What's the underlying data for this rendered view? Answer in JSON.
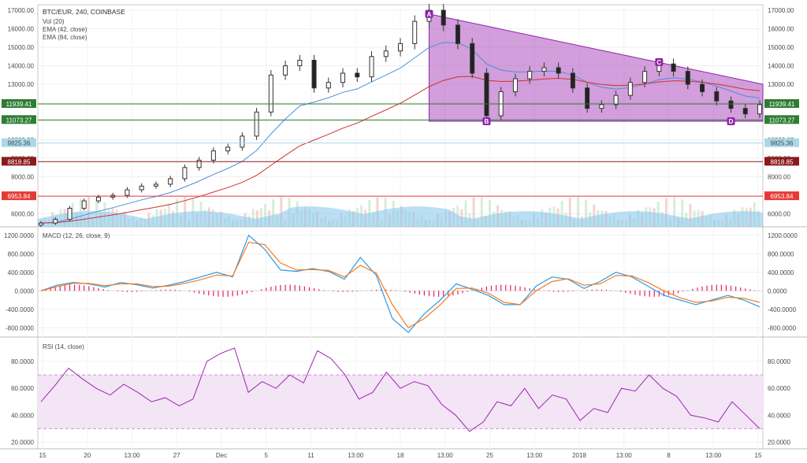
{
  "chart_data": [
    {
      "type": "candlestick",
      "title": "BTC/EUR, 240, COINBASE",
      "indicators_legend": [
        "Vol (20)",
        "EMA (42, close)",
        "EMA (84, close)"
      ],
      "ylim": [
        5300,
        17300
      ],
      "y_ticks": [
        "6000.00",
        "8000.00",
        "9000.00",
        "10000.00",
        "11000.00",
        "12000.00",
        "13000.00",
        "14000.00",
        "15000.00",
        "16000.00",
        "17000.00"
      ],
      "price_labels": [
        {
          "value": 11939.41,
          "text": "11939.41",
          "color": "#2e7d32"
        },
        {
          "value": 11073.27,
          "text": "11073.27",
          "color": "#2e7d32"
        },
        {
          "value": 9825.36,
          "text": "9825.36",
          "color": "#a9d8e8"
        },
        {
          "value": 8818.85,
          "text": "8818.85",
          "color": "#8b1a1a"
        },
        {
          "value": 6953.84,
          "text": "6953.84",
          "color": "#e53935"
        }
      ],
      "pattern_points": [
        {
          "label": "A",
          "value": 16800
        },
        {
          "label": "B",
          "value": 11000
        },
        {
          "label": "C",
          "value": 14200
        },
        {
          "label": "D",
          "value": 11000
        }
      ],
      "close_series": [
        5500,
        5700,
        6300,
        6700,
        6900,
        7000,
        7300,
        7500,
        7600,
        7900,
        8500,
        8900,
        9400,
        9600,
        10200,
        11500,
        13500,
        14000,
        14300,
        12800,
        13100,
        13600,
        13400,
        14500,
        14800,
        15200,
        16400,
        17000,
        16200,
        15200,
        13600,
        11300,
        12600,
        13300,
        13700,
        13900,
        13600,
        12800,
        11700,
        11900,
        12400,
        13100,
        13700,
        14100,
        13700,
        13000,
        12600,
        12100,
        11700,
        11400,
        11900
      ]
    },
    {
      "type": "line",
      "title": "MACD (12, 26, close, 9)",
      "ylim": [
        -1000,
        1350
      ],
      "y_ticks": [
        "-800.0000",
        "-400.0000",
        "0.0000",
        "400.0000",
        "800.0000",
        "1200.0000"
      ],
      "series": [
        {
          "color": "#2e9be6",
          "values": [
            0,
            120,
            180,
            150,
            80,
            180,
            130,
            60,
            120,
            200,
            300,
            400,
            300,
            1200,
            900,
            450,
            420,
            480,
            420,
            250,
            720,
            330,
            -600,
            -900,
            -500,
            -200,
            150,
            30,
            -100,
            -300,
            -300,
            100,
            300,
            250,
            50,
            200,
            400,
            300,
            100,
            -100,
            -200,
            -300,
            -200,
            -100,
            -200,
            -350
          ]
        },
        {
          "color": "#f57c20",
          "values": [
            0,
            90,
            160,
            160,
            110,
            150,
            150,
            90,
            100,
            160,
            240,
            340,
            320,
            1050,
            1000,
            600,
            450,
            460,
            440,
            300,
            550,
            380,
            -300,
            -800,
            -600,
            -300,
            50,
            60,
            -50,
            -250,
            -300,
            0,
            200,
            260,
            120,
            150,
            330,
            320,
            180,
            0,
            -150,
            -250,
            -220,
            -140,
            -160,
            -250
          ]
        }
      ]
    },
    {
      "type": "line",
      "title": "RSI (14, close)",
      "ylim": [
        15,
        97
      ],
      "y_ticks": [
        "20.0000",
        "40.0000",
        "60.0000",
        "80.0000"
      ],
      "bands": [
        30,
        70
      ],
      "series": [
        {
          "color": "#9c27b0",
          "values": [
            50,
            62,
            75,
            67,
            60,
            55,
            63,
            57,
            50,
            53,
            47,
            52,
            80,
            86,
            90,
            57,
            65,
            60,
            70,
            64,
            88,
            82,
            70,
            52,
            57,
            72,
            60,
            65,
            62,
            48,
            40,
            28,
            35,
            50,
            47,
            60,
            45,
            55,
            52,
            36,
            45,
            42,
            60,
            58,
            70,
            60,
            54,
            40,
            38,
            35,
            50,
            40,
            30
          ]
        }
      ]
    }
  ],
  "x_ticks": [
    "15",
    "20",
    "13:00",
    "27",
    "Dec",
    "5",
    "11",
    "13:00",
    "18",
    "13:00",
    "25",
    "13:00",
    "2018",
    "13:00",
    "8",
    "13:00",
    "15"
  ]
}
